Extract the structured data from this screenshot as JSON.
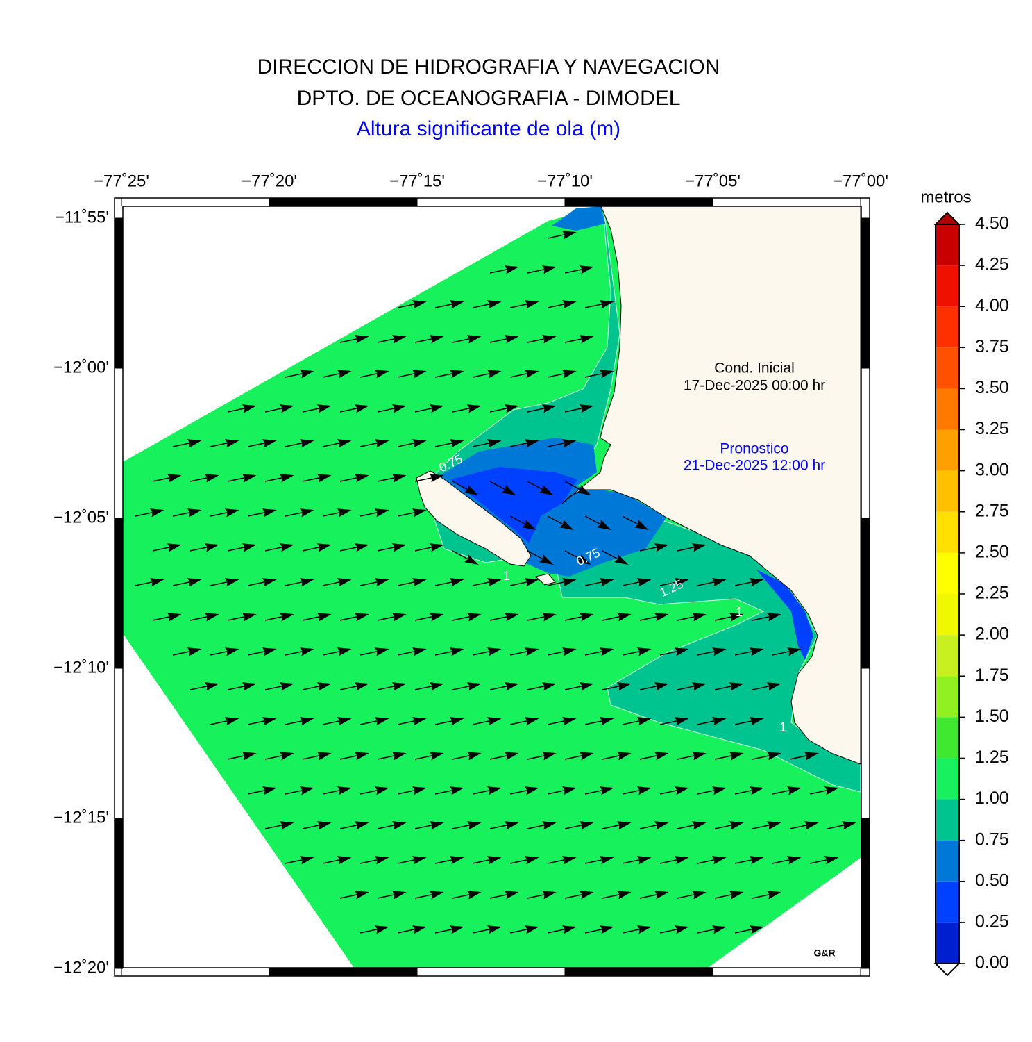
{
  "header": {
    "title_lines": [
      "DIRECCION DE HIDROGRAFIA Y NAVEGACION",
      "DPTO. DE OCEANOGRAFIA - DIMODEL"
    ],
    "subtitle": "Altura significante de ola (m)"
  },
  "map": {
    "lonlim": [
      -77.41667,
      -77.0
    ],
    "latlim": [
      -12.33333,
      -11.91667
    ],
    "lon_ticks": [
      {
        "value": -77.41667,
        "label": "−77˚25'"
      },
      {
        "value": -77.33333,
        "label": "−77˚20'"
      },
      {
        "value": -77.25,
        "label": "−77˚15'"
      },
      {
        "value": -77.16667,
        "label": "−77˚10'"
      },
      {
        "value": -77.08333,
        "label": "−77˚05'"
      },
      {
        "value": -77.0,
        "label": "−77˚00'"
      }
    ],
    "lat_ticks": [
      {
        "value": -11.91667,
        "label": "−11˚55'"
      },
      {
        "value": -12.0,
        "label": "−12˚00'"
      },
      {
        "value": -12.08333,
        "label": "−12˚05'"
      },
      {
        "value": -12.16667,
        "label": "−12˚10'"
      },
      {
        "value": -12.25,
        "label": "−12˚15'"
      },
      {
        "value": -12.33333,
        "label": "−12˚20'"
      }
    ],
    "annotations": {
      "initial_label": "Cond. Inicial",
      "initial_date": "17-Dec-2025 00:00 hr",
      "forecast_label": "Pronostico",
      "forecast_date": "21-Dec-2025 12:00 hr"
    },
    "contour_labels": [
      "0.75",
      "0.75",
      "1.25",
      "1",
      "1",
      "1"
    ],
    "credit": "G&R"
  },
  "colorbar": {
    "title": "metros",
    "ticks": [
      {
        "value": 0,
        "label": "0.00"
      },
      {
        "value": 0.25,
        "label": "0.25"
      },
      {
        "value": 0.5,
        "label": "0.50"
      },
      {
        "value": 0.75,
        "label": "0.75"
      },
      {
        "value": 1,
        "label": "1.00"
      },
      {
        "value": 1.25,
        "label": "1.25"
      },
      {
        "value": 1.5,
        "label": "1.50"
      },
      {
        "value": 1.75,
        "label": "1.75"
      },
      {
        "value": 2,
        "label": "2.00"
      },
      {
        "value": 2.25,
        "label": "2.25"
      },
      {
        "value": 2.5,
        "label": "2.50"
      },
      {
        "value": 2.75,
        "label": "2.75"
      },
      {
        "value": 3,
        "label": "3.00"
      },
      {
        "value": 3.25,
        "label": "3.25"
      },
      {
        "value": 3.5,
        "label": "3.50"
      },
      {
        "value": 3.75,
        "label": "3.75"
      },
      {
        "value": 4,
        "label": "4.00"
      },
      {
        "value": 4.25,
        "label": "4.25"
      },
      {
        "value": 4.5,
        "label": "4.50"
      }
    ],
    "colors": [
      "#0020d0",
      "#0040ff",
      "#0078d8",
      "#00c490",
      "#18f060",
      "#40e830",
      "#90f020",
      "#c8f020",
      "#f0f800",
      "#ffff00",
      "#ffe000",
      "#ffc000",
      "#ffa000",
      "#ff7800",
      "#ff5000",
      "#ff3000",
      "#f01000",
      "#c80000"
    ],
    "over_color": "#b00000",
    "under_color": "#ffffff"
  }
}
